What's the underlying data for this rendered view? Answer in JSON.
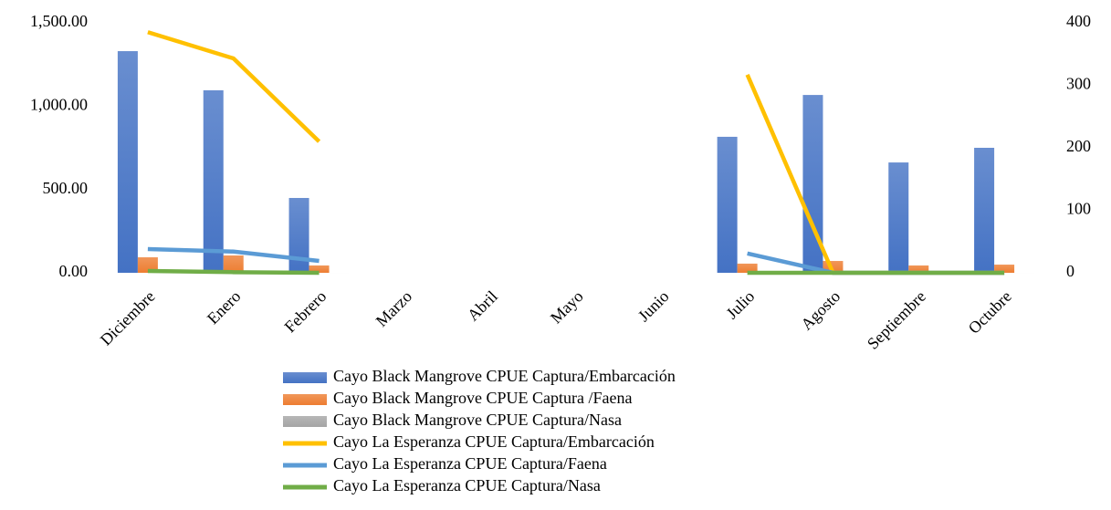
{
  "chart_data": {
    "type": "bar",
    "categories": [
      "Diciembre",
      "Enero",
      "Febrero",
      "Marzo",
      "Abril",
      "Mayo",
      "Junio",
      "Julio",
      "Agosto",
      "Septiembre",
      "Octubre"
    ],
    "series": [
      {
        "name": "Cayo Black Mangrove CPUE Captura/Embarcación",
        "color": "#4472c4",
        "type": "bar",
        "values": [
          1330,
          1095,
          449,
          null,
          null,
          null,
          null,
          816,
          1067,
          662,
          750
        ]
      },
      {
        "name": "Cayo Black Mangrove CPUE Captura /Faena",
        "color": "#ed7d31",
        "type": "bar",
        "values": [
          93,
          104,
          44,
          null,
          null,
          null,
          null,
          55,
          71,
          44,
          49
        ]
      },
      {
        "name": "Cayo Black Mangrove CPUE Captura/Nasa",
        "color": "#a5a5a5",
        "type": "bar",
        "values": [
          0,
          0,
          0,
          null,
          null,
          null,
          null,
          0,
          0,
          0,
          0
        ]
      },
      {
        "name": "Cayo La Esperanza CPUE Captura/Embarcación",
        "color": "#ffc000",
        "type": "line",
        "axis": "y2",
        "values": [
          385,
          343,
          210,
          null,
          null,
          null,
          null,
          317,
          0,
          0,
          0
        ]
      },
      {
        "name": "Cayo La Esperanza CPUE Captura/Faena",
        "color": "#5b9bd5",
        "type": "line",
        "axis": "y2",
        "values": [
          38,
          34,
          19,
          null,
          null,
          null,
          null,
          31,
          0,
          0,
          0
        ]
      },
      {
        "name": "Cayo La Esperanza CPUE Captura/Nasa",
        "color": "#70ad47",
        "type": "line",
        "axis": "y2",
        "values": [
          3,
          1,
          0,
          null,
          null,
          null,
          null,
          0,
          0,
          0,
          0
        ]
      }
    ],
    "ylim": [
      0,
      1500
    ],
    "yticks": [
      {
        "value": 0,
        "label": "0.00"
      },
      {
        "value": 500,
        "label": "500.00"
      },
      {
        "value": 1000,
        "label": "1,000.00"
      },
      {
        "value": 1500,
        "label": "1,500.00"
      }
    ],
    "y2lim": [
      0,
      400
    ],
    "y2ticks": [
      0,
      100,
      200,
      300,
      400
    ],
    "grid": false,
    "legend": "bottom"
  }
}
